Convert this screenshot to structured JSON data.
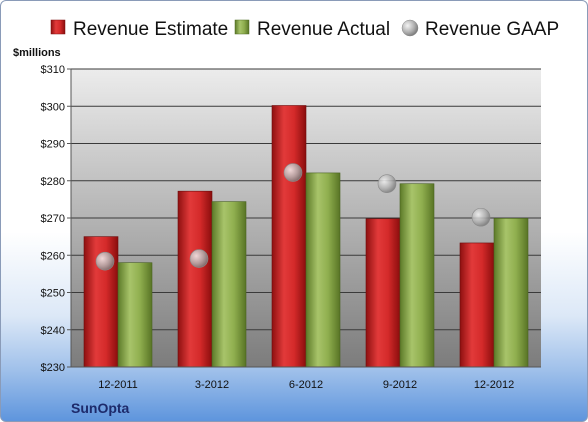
{
  "chart_data": {
    "type": "bar",
    "unit_label": "$millions",
    "company": "SunOpta",
    "categories": [
      "12-2011",
      "3-2012",
      "6-2012",
      "9-2012",
      "12-2012"
    ],
    "yticks": [
      "$230",
      "$240",
      "$250",
      "$260",
      "$270",
      "$280",
      "$290",
      "$300",
      "$310"
    ],
    "ylim": [
      230,
      310
    ],
    "grid": true,
    "legend_position": "top",
    "series": [
      {
        "name": "Revenue Estimate",
        "kind": "bar",
        "color": "#d42a2a",
        "values": [
          265,
          277.2,
          300.2,
          269.8,
          263.3
        ]
      },
      {
        "name": "Revenue Actual",
        "kind": "bar",
        "color": "#8fae4e",
        "values": [
          258,
          274.4,
          282.1,
          279.2,
          269.9
        ]
      },
      {
        "name": "Revenue GAAP",
        "kind": "point",
        "color": "#a9a9a9",
        "values": [
          258.4,
          259.1,
          282.2,
          279.2,
          270.2
        ]
      }
    ]
  }
}
